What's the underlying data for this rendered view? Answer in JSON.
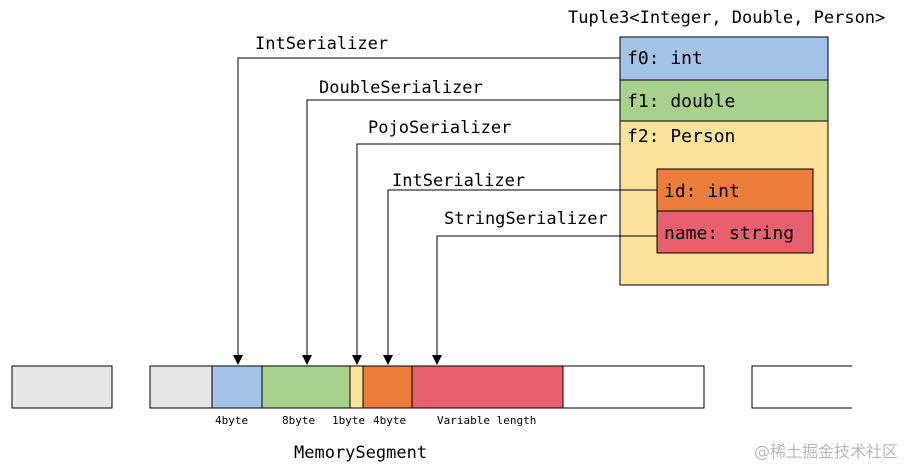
{
  "tuple": {
    "title": "Tuple3<Integer, Double, Person>",
    "fields": [
      {
        "label": "f0:  int",
        "color": "#a3c4e6"
      },
      {
        "label": "f1:  double",
        "color": "#a9d18e"
      },
      {
        "label": "f2:  Person",
        "color": "#fde39a"
      }
    ],
    "person_fields": [
      {
        "label": "id:  int",
        "color": "#ed7d3a"
      },
      {
        "label": "name: string",
        "color": "#e8606e"
      }
    ]
  },
  "serializers": [
    {
      "label": "IntSerializer"
    },
    {
      "label": "DoubleSerializer"
    },
    {
      "label": "PojoSerializer"
    },
    {
      "label": "IntSerializer"
    },
    {
      "label": "StringSerializer"
    }
  ],
  "segment": {
    "title": "MemorySegment",
    "blocks": [
      {
        "label": "",
        "color": "#e6e6e6"
      },
      {
        "label": "",
        "color": "#e6e6e6"
      },
      {
        "label": "4byte",
        "color": "#a3c4e6"
      },
      {
        "label": "8byte",
        "color": "#a9d18e"
      },
      {
        "label": "1byte",
        "color": "#fde39a"
      },
      {
        "label": "4byte",
        "color": "#ed7d3a"
      },
      {
        "label": "Variable length",
        "color": "#e8606e"
      },
      {
        "label": "",
        "color": "#ffffff"
      },
      {
        "label": "",
        "color": "#ffffff"
      }
    ]
  },
  "watermark": "@稀土掘金技术社区"
}
